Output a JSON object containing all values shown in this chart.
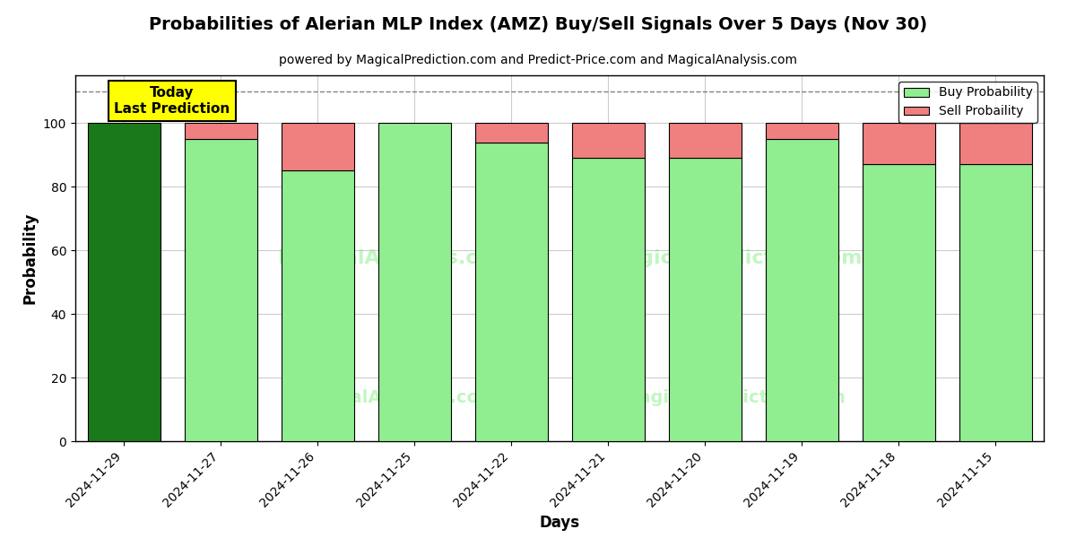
{
  "title": "Probabilities of Alerian MLP Index (AMZ) Buy/Sell Signals Over 5 Days (Nov 30)",
  "subtitle": "powered by MagicalPrediction.com and Predict-Price.com and MagicalAnalysis.com",
  "xlabel": "Days",
  "ylabel": "Probability",
  "categories": [
    "2024-11-29",
    "2024-11-27",
    "2024-11-26",
    "2024-11-25",
    "2024-11-22",
    "2024-11-21",
    "2024-11-20",
    "2024-11-19",
    "2024-11-18",
    "2024-11-15"
  ],
  "buy_values": [
    100,
    95,
    85,
    100,
    94,
    89,
    89,
    95,
    87,
    87
  ],
  "sell_values": [
    0,
    5,
    15,
    0,
    6,
    11,
    11,
    5,
    13,
    13
  ],
  "today_bar_color": "#1a7a1a",
  "buy_color": "#90ee90",
  "sell_color": "#f08080",
  "today_annotation_bg": "#ffff00",
  "today_annotation_text": "Today\nLast Prediction",
  "dashed_line_y": 110,
  "ylim": [
    0,
    115
  ],
  "yticks": [
    0,
    20,
    40,
    60,
    80,
    100
  ],
  "legend_buy_label": "Buy Probability",
  "legend_sell_label": "Sell Probaility",
  "background_color": "#ffffff",
  "grid_color": "#cccccc",
  "title_fontsize": 14,
  "subtitle_fontsize": 10,
  "axis_label_fontsize": 12,
  "tick_fontsize": 10,
  "bar_width": 0.75
}
